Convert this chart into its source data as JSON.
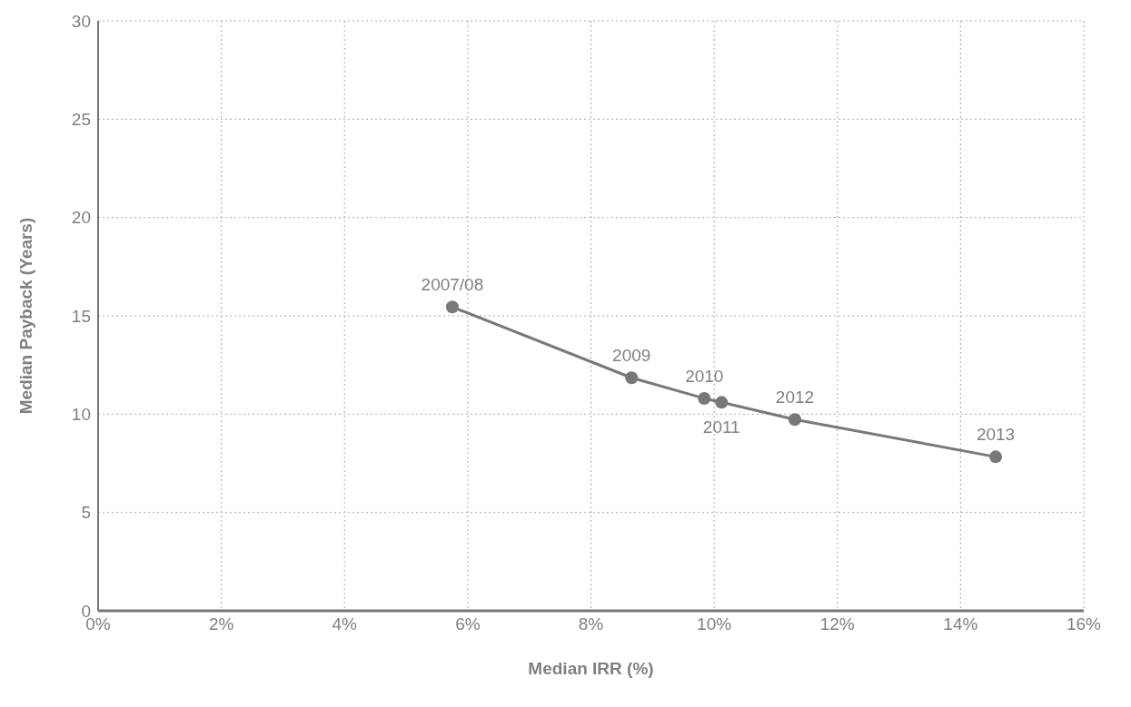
{
  "chart_data": {
    "type": "line",
    "xlabel": "Median IRR (%)",
    "ylabel": "Median Payback (Years)",
    "x": [
      5.75,
      8.66,
      9.84,
      10.12,
      11.31,
      14.57
    ],
    "series": [
      {
        "color": "#787878",
        "values": [
          15.45,
          11.85,
          10.8,
          10.6,
          9.73,
          7.83
        ]
      }
    ],
    "xlim": [
      0,
      16
    ],
    "xticks": [
      {
        "value": 0,
        "label": "0%"
      },
      {
        "value": 2,
        "label": "2%"
      },
      {
        "value": 4,
        "label": "4%"
      },
      {
        "value": 6,
        "label": "6%"
      },
      {
        "value": 8,
        "label": "8%"
      },
      {
        "value": 10,
        "label": "10%"
      },
      {
        "value": 12,
        "label": "12%"
      },
      {
        "value": 14,
        "label": "14%"
      },
      {
        "value": 16,
        "label": "16%"
      }
    ],
    "ylim": [
      0,
      30
    ],
    "yticks": [
      0,
      5,
      10,
      15,
      20,
      25,
      30
    ],
    "grid": true,
    "legend": false,
    "marker": "circle",
    "line_style": "solid",
    "annotations": [
      {
        "text": "2007/08",
        "x": 5.75,
        "y": 15.45
      },
      {
        "text": "2009",
        "x": 8.66,
        "y": 11.85
      },
      {
        "text": "2010",
        "x": 9.84,
        "y": 10.8
      },
      {
        "text": "2011",
        "x": 10.12,
        "y": 10.6
      },
      {
        "text": "2012",
        "x": 11.31,
        "y": 9.73
      },
      {
        "text": "2013",
        "x": 14.57,
        "y": 7.83
      }
    ]
  }
}
